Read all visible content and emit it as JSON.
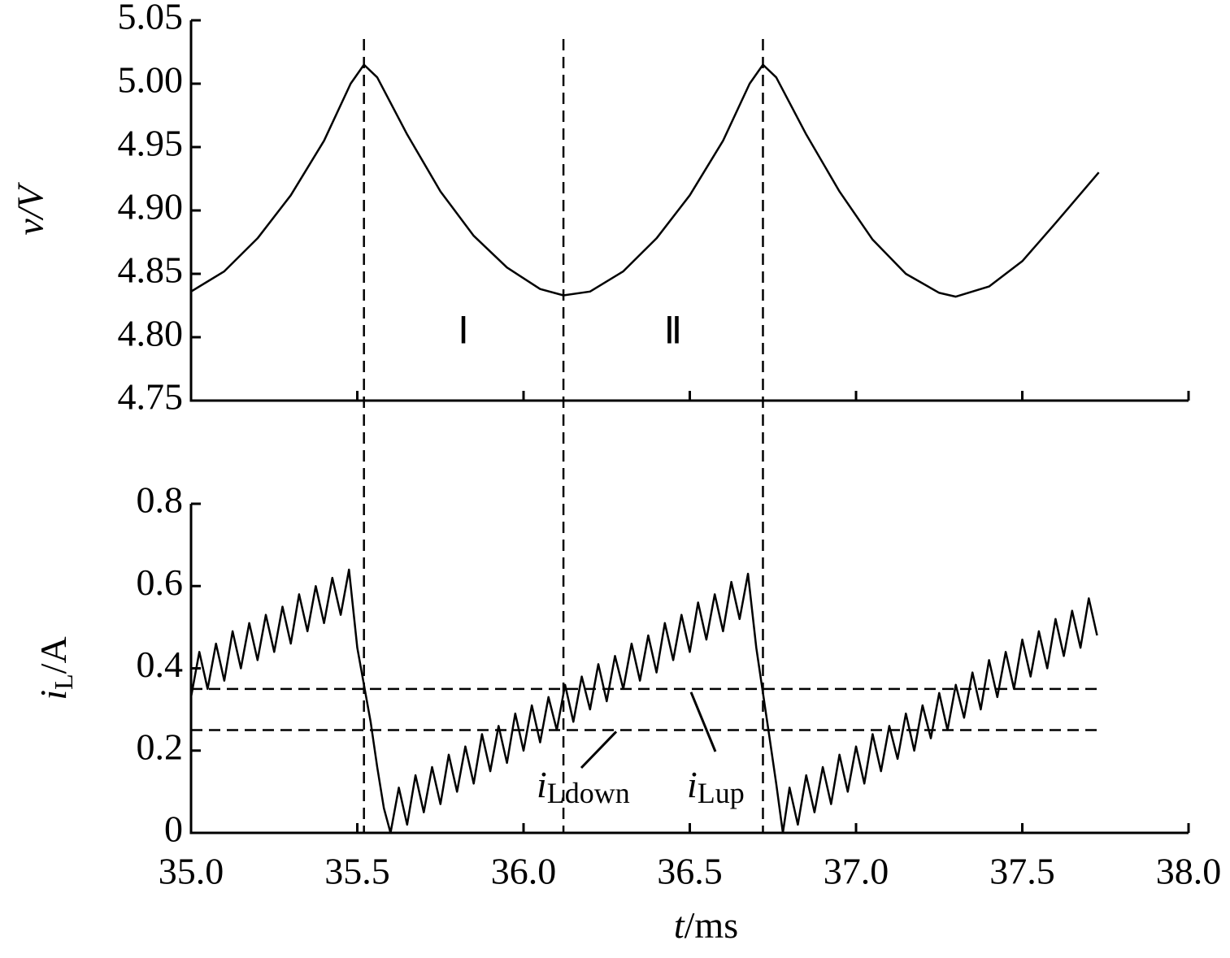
{
  "chart_data": [
    {
      "type": "line",
      "ylabel": "v/V",
      "xlim": [
        35,
        38
      ],
      "xticks": [
        35,
        35.5,
        36,
        36.5,
        37,
        37.5,
        38
      ],
      "ylim": [
        4.75,
        5.05
      ],
      "yticks": [
        4.75,
        {
          "value": 4.8,
          "label": "4.80"
        },
        4.85,
        {
          "value": 4.9,
          "label": "4.90"
        },
        4.95,
        {
          "value": 5,
          "label": "5.00"
        },
        5.05
      ],
      "vlines": [
        35.52,
        36.12,
        36.72
      ],
      "regions": [
        "Ⅰ",
        "Ⅱ"
      ],
      "x": [
        35.0,
        35.1,
        35.2,
        35.3,
        35.4,
        35.48,
        35.52,
        35.56,
        35.65,
        35.75,
        35.85,
        35.95,
        36.05,
        36.12,
        36.2,
        36.3,
        36.4,
        36.5,
        36.6,
        36.68,
        36.72,
        36.76,
        36.85,
        36.95,
        37.05,
        37.15,
        37.25,
        37.3,
        37.4,
        37.5,
        37.6,
        37.73
      ],
      "series": [
        {
          "color": "#000000",
          "values": [
            4.836,
            4.852,
            4.878,
            4.912,
            4.955,
            5.0,
            5.015,
            5.005,
            4.96,
            4.915,
            4.88,
            4.855,
            4.838,
            4.833,
            4.836,
            4.852,
            4.878,
            4.912,
            4.955,
            5.0,
            5.015,
            5.005,
            4.96,
            4.915,
            4.877,
            4.85,
            4.835,
            4.832,
            4.84,
            4.86,
            4.89,
            4.93
          ]
        }
      ]
    },
    {
      "type": "line",
      "ylabel": {
        "main": "i",
        "sub": "L",
        "rest": "/A"
      },
      "xlabel": {
        "main": "t",
        "rest": "/ms"
      },
      "xlim": [
        35,
        38
      ],
      "xticks": [
        {
          "value": 35,
          "label": "35.0"
        },
        {
          "value": 35.5,
          "label": "35.5"
        },
        {
          "value": 36,
          "label": "36.0"
        },
        {
          "value": 36.5,
          "label": "36.5"
        },
        {
          "value": 37,
          "label": "37.0"
        },
        {
          "value": 37.5,
          "label": "37.5"
        },
        {
          "value": 38,
          "label": "38.0"
        }
      ],
      "ylim": [
        0,
        0.8
      ],
      "yticks": [
        0,
        0.2,
        0.4,
        0.6,
        0.8
      ],
      "hlines": [
        0.35,
        0.25
      ],
      "annotations": [
        {
          "main": "i",
          "sub": "Ldown"
        },
        {
          "main": "i",
          "sub": "Lup"
        }
      ],
      "x": [
        35.0,
        35.025,
        35.05,
        35.075,
        35.1,
        35.125,
        35.15,
        35.175,
        35.2,
        35.225,
        35.25,
        35.275,
        35.3,
        35.325,
        35.35,
        35.375,
        35.4,
        35.425,
        35.45,
        35.475,
        35.5,
        35.52,
        35.54,
        35.56,
        35.58,
        35.6,
        35.625,
        35.65,
        35.675,
        35.7,
        35.725,
        35.75,
        35.775,
        35.8,
        35.825,
        35.85,
        35.875,
        35.9,
        35.925,
        35.95,
        35.975,
        36.0,
        36.025,
        36.05,
        36.075,
        36.1,
        36.125,
        36.15,
        36.175,
        36.2,
        36.225,
        36.25,
        36.275,
        36.3,
        36.325,
        36.35,
        36.375,
        36.4,
        36.425,
        36.45,
        36.475,
        36.5,
        36.525,
        36.55,
        36.575,
        36.6,
        36.625,
        36.65,
        36.675,
        36.7,
        36.72,
        36.74,
        36.76,
        36.78,
        36.8,
        36.825,
        36.85,
        36.875,
        36.9,
        36.925,
        36.95,
        36.975,
        37.0,
        37.025,
        37.05,
        37.075,
        37.1,
        37.125,
        37.15,
        37.175,
        37.2,
        37.225,
        37.25,
        37.275,
        37.3,
        37.325,
        37.35,
        37.375,
        37.4,
        37.425,
        37.45,
        37.475,
        37.5,
        37.525,
        37.55,
        37.575,
        37.6,
        37.625,
        37.65,
        37.675,
        37.7,
        37.725
      ],
      "series": [
        {
          "color": "#000000",
          "values": [
            0.33,
            0.44,
            0.35,
            0.46,
            0.37,
            0.49,
            0.4,
            0.51,
            0.42,
            0.53,
            0.44,
            0.55,
            0.46,
            0.58,
            0.49,
            0.6,
            0.51,
            0.62,
            0.53,
            0.64,
            0.45,
            0.36,
            0.27,
            0.16,
            0.06,
            0,
            0.11,
            0.02,
            0.14,
            0.05,
            0.16,
            0.07,
            0.19,
            0.1,
            0.21,
            0.12,
            0.24,
            0.15,
            0.26,
            0.17,
            0.29,
            0.2,
            0.31,
            0.22,
            0.33,
            0.25,
            0.36,
            0.27,
            0.38,
            0.3,
            0.41,
            0.32,
            0.43,
            0.35,
            0.46,
            0.37,
            0.48,
            0.39,
            0.51,
            0.42,
            0.53,
            0.44,
            0.56,
            0.47,
            0.58,
            0.49,
            0.61,
            0.52,
            0.63,
            0.45,
            0.34,
            0.23,
            0.12,
            0,
            0.11,
            0.02,
            0.14,
            0.05,
            0.16,
            0.07,
            0.19,
            0.1,
            0.21,
            0.12,
            0.24,
            0.15,
            0.26,
            0.18,
            0.29,
            0.2,
            0.31,
            0.23,
            0.34,
            0.25,
            0.36,
            0.28,
            0.39,
            0.3,
            0.42,
            0.33,
            0.44,
            0.35,
            0.47,
            0.38,
            0.49,
            0.4,
            0.52,
            0.43,
            0.54,
            0.45,
            0.57,
            0.48
          ]
        }
      ]
    }
  ]
}
